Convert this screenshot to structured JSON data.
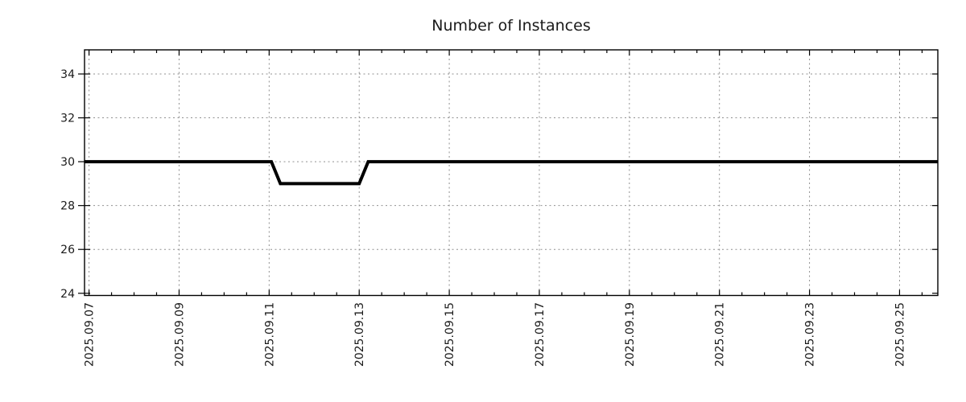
{
  "page": {
    "background_color": "#ffffff"
  },
  "chart_data": {
    "type": "line",
    "title": "Number of Instances",
    "xlabel": "",
    "ylabel": "",
    "legend": "none",
    "grid": {
      "show": true,
      "style": "dashed",
      "color": "#909090"
    },
    "colors": {
      "axis": "#000000",
      "text": "#1a1a1a",
      "series_line": "#000000",
      "background": "#ffffff"
    },
    "x_axis": {
      "unit": "date",
      "epoch_label": "2025.09.07",
      "tick_labels": [
        "2025.09.07",
        "2025.09.09",
        "2025.09.11",
        "2025.09.13",
        "2025.09.15",
        "2025.09.17",
        "2025.09.19",
        "2025.09.21",
        "2025.09.23",
        "2025.09.25"
      ],
      "tick_positions_days": [
        0,
        2,
        4,
        6,
        8,
        10,
        12,
        14,
        16,
        18
      ],
      "minor_tick_step_days": 0.5,
      "xlim_days": [
        -0.1,
        18.85
      ],
      "label_rotation_deg": -90
    },
    "y_axis": {
      "tick_labels": [
        "24",
        "26",
        "28",
        "30",
        "32",
        "34"
      ],
      "tick_values": [
        24,
        26,
        28,
        30,
        32,
        34
      ],
      "ylim": [
        23.9,
        35.1
      ]
    },
    "series": [
      {
        "name": "instances",
        "color": "#000000",
        "line_width": 4,
        "points": [
          {
            "t": -0.1,
            "v": 30
          },
          {
            "t": 4.05,
            "v": 30
          },
          {
            "t": 4.25,
            "v": 29
          },
          {
            "t": 6.0,
            "v": 29
          },
          {
            "t": 6.2,
            "v": 30
          },
          {
            "t": 18.85,
            "v": 30
          }
        ]
      }
    ],
    "value_timeline": [
      {
        "from": "2025.09.07",
        "to": "2025.09.11",
        "value": 30
      },
      {
        "from": "2025.09.11",
        "to": "2025.09.13",
        "value": 29
      },
      {
        "from": "2025.09.13",
        "to": "2025.09.25",
        "value": 30
      }
    ]
  }
}
